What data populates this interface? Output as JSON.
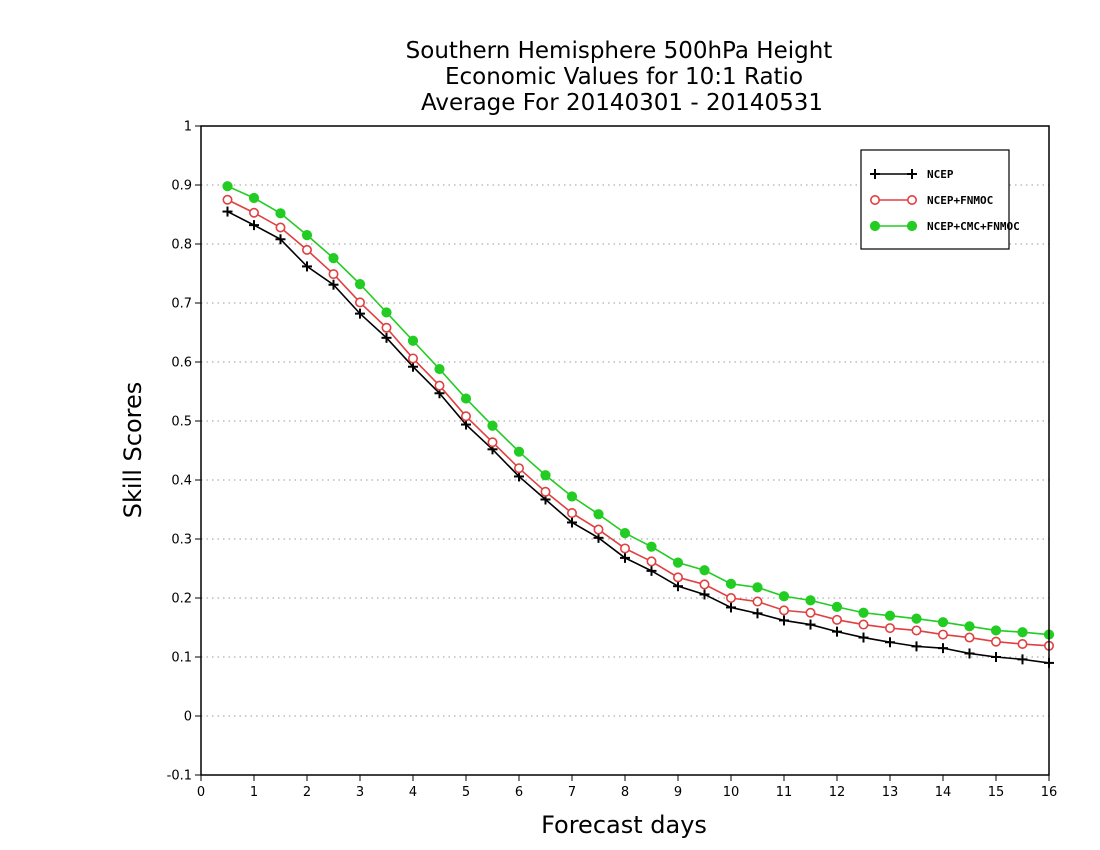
{
  "chart_data": {
    "type": "line",
    "title_lines": [
      "Southern Hemisphere 500hPa Height",
      "Economic Values for 10:1 Ratio",
      "Average For 20140301 - 20140531"
    ],
    "xlabel": "Forecast days",
    "ylabel": "Skill Scores",
    "xlim": [
      0,
      16
    ],
    "ylim": [
      -0.1,
      1
    ],
    "x_ticks": [
      0,
      1,
      2,
      3,
      4,
      5,
      6,
      7,
      8,
      9,
      10,
      11,
      12,
      13,
      14,
      15,
      16
    ],
    "y_ticks": [
      -0.1,
      0,
      0.1,
      0.2,
      0.3,
      0.4,
      0.5,
      0.6,
      0.7,
      0.8,
      0.9,
      1
    ],
    "y_tick_labels": [
      "-0.1",
      "0",
      "0.1",
      "0.2",
      "0.3",
      "0.4",
      "0.5",
      "0.6",
      "0.7",
      "0.8",
      "0.9",
      "1"
    ],
    "grid": "horizontal dotted",
    "legend_position": "top-right",
    "x": [
      0.5,
      1,
      1.5,
      2,
      2.5,
      3,
      3.5,
      4,
      4.5,
      5,
      5.5,
      6,
      6.5,
      7,
      7.5,
      8,
      8.5,
      9,
      9.5,
      10,
      10.5,
      11,
      11.5,
      12,
      12.5,
      13,
      13.5,
      14,
      14.5,
      15,
      15.5,
      16
    ],
    "series": [
      {
        "name": "NCEP",
        "color": "#000000",
        "marker": "plus",
        "values": [
          0.855,
          0.832,
          0.808,
          0.762,
          0.731,
          0.682,
          0.641,
          0.592,
          0.547,
          0.494,
          0.452,
          0.406,
          0.367,
          0.328,
          0.302,
          0.268,
          0.246,
          0.22,
          0.206,
          0.184,
          0.174,
          0.162,
          0.155,
          0.143,
          0.133,
          0.125,
          0.118,
          0.115,
          0.106,
          0.1,
          0.096,
          0.09
        ]
      },
      {
        "name": "NCEP+FNMOC",
        "color": "#e04040",
        "marker": "open-circle",
        "values": [
          0.875,
          0.853,
          0.828,
          0.79,
          0.749,
          0.701,
          0.658,
          0.606,
          0.56,
          0.508,
          0.464,
          0.42,
          0.38,
          0.344,
          0.316,
          0.284,
          0.262,
          0.235,
          0.223,
          0.2,
          0.194,
          0.179,
          0.175,
          0.163,
          0.155,
          0.149,
          0.145,
          0.138,
          0.133,
          0.126,
          0.122,
          0.119
        ]
      },
      {
        "name": "NCEP+CMC+FNMOC",
        "color": "#22cc22",
        "marker": "filled-circle",
        "values": [
          0.898,
          0.878,
          0.852,
          0.815,
          0.776,
          0.732,
          0.684,
          0.636,
          0.588,
          0.538,
          0.492,
          0.448,
          0.408,
          0.372,
          0.342,
          0.31,
          0.287,
          0.26,
          0.247,
          0.224,
          0.218,
          0.203,
          0.196,
          0.185,
          0.175,
          0.17,
          0.165,
          0.159,
          0.152,
          0.145,
          0.142,
          0.138
        ]
      }
    ]
  }
}
